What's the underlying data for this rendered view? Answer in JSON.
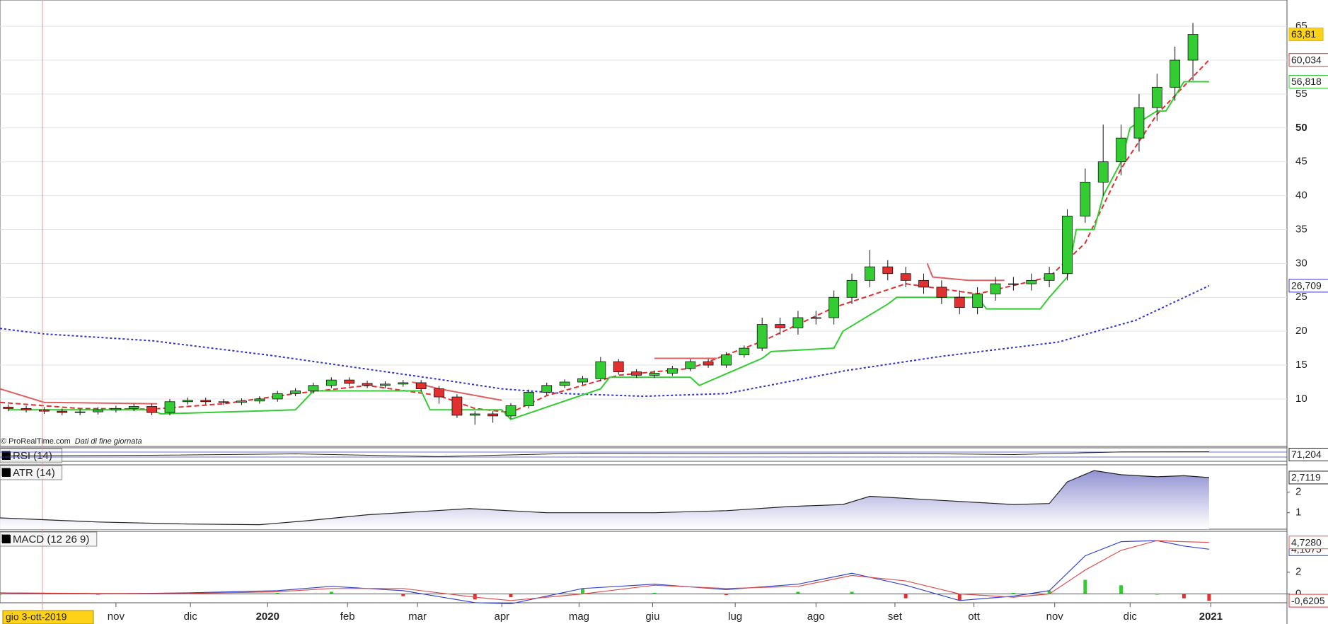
{
  "chart_data": [
    {
      "type": "candlestick",
      "copyright": "© ProRealTime.com",
      "note": "Dati di fine giornata",
      "cursor": {
        "value": 1.9,
        "label": "gio 3-ott-2019"
      },
      "xlim": [
        -0.46,
        71.24
      ],
      "xticks": [
        {
          "value": 6,
          "label": "nov"
        },
        {
          "value": 10.15,
          "label": "dic"
        },
        {
          "value": 14.45,
          "label": "2020"
        },
        {
          "value": 18.9,
          "label": "feb"
        },
        {
          "value": 22.8,
          "label": "mar"
        },
        {
          "value": 27.5,
          "label": "apr"
        },
        {
          "value": 31.8,
          "label": "mag"
        },
        {
          "value": 35.9,
          "label": "giu"
        },
        {
          "value": 40.5,
          "label": "lug"
        },
        {
          "value": 45.0,
          "label": "ago"
        },
        {
          "value": 49.4,
          "label": "set"
        },
        {
          "value": 53.8,
          "label": "ott"
        },
        {
          "value": 58.3,
          "label": "nov"
        },
        {
          "value": 62.5,
          "label": "dic"
        },
        {
          "value": 67.0,
          "label": "2021"
        }
      ],
      "ylim": [
        3,
        68.875
      ],
      "yticks": [
        10,
        15,
        20,
        25,
        30,
        35,
        40,
        45,
        50,
        55,
        60,
        65
      ],
      "grid": true,
      "up_color": "#33cc33",
      "down_color": "#e03030",
      "x": [
        0,
        1,
        2,
        3,
        4,
        5,
        6,
        7,
        8,
        9,
        10,
        11,
        12,
        13,
        14,
        15,
        16,
        17,
        18,
        19,
        20,
        21,
        22,
        23,
        24,
        25,
        26,
        27,
        28,
        29,
        30,
        31,
        32,
        33,
        34,
        35,
        36,
        37,
        38,
        39,
        40,
        41,
        42,
        43,
        44,
        45,
        46,
        47,
        48,
        49,
        50,
        51,
        52,
        53,
        54,
        55,
        56,
        57,
        58,
        59,
        60,
        61,
        62,
        63,
        64,
        65,
        66
      ],
      "open": [
        8.8,
        8.6,
        8.4,
        8.2,
        8.0,
        8.1,
        8.4,
        8.6,
        8.9,
        8.0,
        9.6,
        9.8,
        9.6,
        9.5,
        9.7,
        10.0,
        10.8,
        11.2,
        12.0,
        12.8,
        12.3,
        12.0,
        12.2,
        12.4,
        11.5,
        10.3,
        7.6,
        7.8,
        7.5,
        9.0,
        11.0,
        12.0,
        12.5,
        13.0,
        15.5,
        14.0,
        13.5,
        13.8,
        14.5,
        15.5,
        15.0,
        16.5,
        17.5,
        21.0,
        20.5,
        22.0,
        22.0,
        25.0,
        27.5,
        29.5,
        28.5,
        27.5,
        26.5,
        25.0,
        23.5,
        25.5,
        27.0,
        27.0,
        27.5,
        28.5,
        37.0,
        42.0,
        45.0,
        48.5,
        53.0,
        56.0,
        60.0
      ],
      "high": [
        9.2,
        9.0,
        8.8,
        8.6,
        8.5,
        8.8,
        9.0,
        9.3,
        9.3,
        10.0,
        10.2,
        10.2,
        10.0,
        10.1,
        10.4,
        11.2,
        11.6,
        12.4,
        13.2,
        13.2,
        12.7,
        12.6,
        12.8,
        12.8,
        11.9,
        10.7,
        8.2,
        8.2,
        9.4,
        11.4,
        12.4,
        12.9,
        13.4,
        16.2,
        15.9,
        14.4,
        14.2,
        14.9,
        15.9,
        15.9,
        16.9,
        17.9,
        22.0,
        22.0,
        23.0,
        23.0,
        26.0,
        28.5,
        32.0,
        30.5,
        29.5,
        28.5,
        27.5,
        26.0,
        26.5,
        28.0,
        28.0,
        28.5,
        29.5,
        38.0,
        44.0,
        50.5,
        50.5,
        55.0,
        58.0,
        62.0,
        65.5
      ],
      "low": [
        8.2,
        8.0,
        7.8,
        7.6,
        7.6,
        7.7,
        8.0,
        8.2,
        7.6,
        7.6,
        9.2,
        9.2,
        9.1,
        9.1,
        9.3,
        9.6,
        10.4,
        10.8,
        11.6,
        11.9,
        11.6,
        11.6,
        11.8,
        11.1,
        9.3,
        7.2,
        6.2,
        6.5,
        7.1,
        8.6,
        10.6,
        11.6,
        12.1,
        12.6,
        13.6,
        13.1,
        13.1,
        13.4,
        14.1,
        14.6,
        14.6,
        16.1,
        17.1,
        19.5,
        19.5,
        21.0,
        21.0,
        24.0,
        26.5,
        27.5,
        26.5,
        25.5,
        24.0,
        22.5,
        22.5,
        24.5,
        26.0,
        26.0,
        26.5,
        27.5,
        36.0,
        40.0,
        43.0,
        46.5,
        51.0,
        54.0,
        57.0
      ],
      "close": [
        8.6,
        8.4,
        8.2,
        8.0,
        8.1,
        8.4,
        8.6,
        8.9,
        8.0,
        9.6,
        9.8,
        9.6,
        9.5,
        9.7,
        10.0,
        10.8,
        11.2,
        12.0,
        12.8,
        12.3,
        12.0,
        12.2,
        12.4,
        11.5,
        10.3,
        7.6,
        7.8,
        7.5,
        9.0,
        11.0,
        12.0,
        12.5,
        13.0,
        15.5,
        14.0,
        13.5,
        13.8,
        14.5,
        15.5,
        15.0,
        16.5,
        17.5,
        21.0,
        20.5,
        22.0,
        22.0,
        25.0,
        27.5,
        29.5,
        28.5,
        27.5,
        26.5,
        25.0,
        23.5,
        25.5,
        27.0,
        27.0,
        27.5,
        28.5,
        37.0,
        42.0,
        45.0,
        48.5,
        53.0,
        56.0,
        60.0,
        63.81
      ],
      "last_label": "63,81",
      "overlays": [
        {
          "color": "#3333cc",
          "style": "dotted",
          "last_label": "26,709",
          "x": [
            -0.46,
            2,
            8,
            14.7,
            20,
            24,
            27.5,
            31,
            35.4,
            40,
            46.7,
            52,
            58.5,
            62.8,
            66.9
          ],
          "values": [
            20.4,
            19.6,
            18.6,
            16.4,
            14.4,
            12.9,
            11.5,
            10.8,
            10.4,
            10.8,
            14.2,
            16.3,
            18.4,
            21.6,
            26.709
          ]
        },
        {
          "color": "#e03030",
          "style": "dashed",
          "last_label": "60,034",
          "x": [
            -0.46,
            4,
            8,
            12,
            16,
            20,
            24,
            26,
            28,
            30,
            34,
            38,
            42,
            46,
            50,
            54,
            58,
            60,
            62,
            64,
            66.9
          ],
          "values": [
            9.5,
            8.6,
            8.5,
            9.3,
            10.8,
            12.0,
            10.5,
            8.6,
            8.0,
            10.5,
            13.5,
            14.5,
            18.5,
            23.5,
            27.0,
            25.5,
            28.0,
            33.0,
            44.0,
            52.0,
            60.034
          ]
        },
        {
          "color": "#e06060",
          "style": "solid",
          "x": [
            -0.46,
            2,
            8.3,
            8.4,
            22.5,
            24,
            27.5,
            28,
            36,
            39.5,
            39.6,
            51.2,
            51.5,
            53.5,
            55.5
          ],
          "values": [
            11.5,
            9.5,
            9.3,
            null,
            12.5,
            11.5,
            9.8,
            null,
            16.0,
            16.0,
            null,
            30.0,
            28.0,
            27.5,
            27.5
          ]
        },
        {
          "color": "#33cc33",
          "style": "solid",
          "last_label": "56,818",
          "x": [
            0,
            8,
            8.5,
            16,
            17,
            23,
            23.5,
            27.5,
            28,
            33,
            33.5,
            38,
            38.5,
            42,
            42.5,
            46,
            46.5,
            49,
            49.5,
            54,
            54.5,
            57.5,
            58,
            59,
            59.5,
            60.5,
            61,
            62,
            62.5,
            64,
            64.5,
            65.5,
            66,
            66.9
          ],
          "values": [
            8.4,
            8.4,
            7.8,
            8.4,
            11.2,
            11.2,
            8.4,
            8.4,
            7.0,
            11.5,
            13.2,
            13.2,
            12.0,
            16.0,
            17.0,
            17.5,
            20.0,
            24.0,
            25.0,
            25.0,
            23.3,
            23.3,
            25.0,
            28.0,
            35.0,
            35.0,
            40.0,
            45.0,
            50.0,
            52.5,
            52.5,
            56.818,
            56.818,
            56.818
          ]
        }
      ]
    },
    {
      "type": "line",
      "title": "RSI (14)",
      "ylim": [
        0,
        100
      ],
      "series": [
        {
          "color": "#222222",
          "last_label": "71,204",
          "x": [
            0,
            8,
            16,
            24,
            32,
            40,
            48,
            56,
            62,
            66.9
          ],
          "values": [
            40,
            45,
            55,
            35,
            60,
            55,
            60,
            50,
            70,
            71.204
          ]
        }
      ]
    },
    {
      "type": "area",
      "title": "ATR (14)",
      "ylim": [
        0.2,
        3.33
      ],
      "yticks": [
        1,
        2
      ],
      "series": [
        {
          "color": "#222222",
          "fill": "#8c8cd0",
          "last_label": "2,7119",
          "x": [
            -0.46,
            5,
            10,
            14,
            16.5,
            20,
            25.7,
            30,
            36,
            40,
            43.5,
            46.5,
            48,
            52,
            56,
            58,
            59,
            60.5,
            62,
            64,
            65.5,
            66.9
          ],
          "values": [
            0.75,
            0.55,
            0.45,
            0.42,
            0.6,
            0.9,
            1.2,
            1.0,
            1.0,
            1.1,
            1.3,
            1.4,
            1.8,
            1.6,
            1.4,
            1.45,
            2.5,
            3.05,
            2.85,
            2.75,
            2.8,
            2.7119
          ]
        }
      ]
    },
    {
      "type": "macd",
      "title": "MACD (12 26 9)",
      "ylim": [
        -0.81,
        5.75
      ],
      "yticks": [
        0,
        2
      ],
      "pos_color": "#33cc33",
      "neg_color": "#e03030",
      "x": [
        -0.46,
        5,
        10,
        15,
        18,
        22,
        26,
        28,
        32,
        36,
        40,
        44,
        47,
        50,
        53,
        56,
        58,
        60,
        62,
        64,
        65.5,
        66.9
      ],
      "series": [
        {
          "color": "#3344cc",
          "last_label": "4,1075",
          "values": [
            0.1,
            0.0,
            0.1,
            0.3,
            0.7,
            0.3,
            -0.8,
            -0.9,
            0.5,
            0.9,
            0.4,
            0.9,
            1.9,
            0.8,
            -0.6,
            -0.2,
            0.3,
            3.5,
            4.8,
            4.9,
            4.4,
            4.1075
          ]
        },
        {
          "color": "#e05050",
          "last_label": "4,7280",
          "values": [
            0.1,
            0.05,
            0.05,
            0.2,
            0.5,
            0.5,
            -0.3,
            -0.6,
            0.0,
            0.8,
            0.5,
            0.7,
            1.7,
            1.2,
            0.0,
            -0.3,
            0.0,
            2.2,
            4.0,
            4.9,
            4.8,
            4.728
          ]
        }
      ],
      "histogram": {
        "last_label": "-0,6205",
        "values": [
          0.0,
          -0.05,
          0.05,
          0.1,
          0.2,
          -0.2,
          -0.5,
          -0.3,
          0.5,
          0.1,
          -0.1,
          0.2,
          0.2,
          -0.4,
          -0.6,
          0.1,
          0.3,
          1.3,
          0.8,
          0.0,
          -0.4,
          -0.6205
        ]
      }
    }
  ]
}
